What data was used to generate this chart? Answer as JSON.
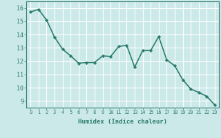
{
  "x": [
    0,
    1,
    2,
    3,
    4,
    5,
    6,
    7,
    8,
    9,
    10,
    11,
    12,
    13,
    14,
    15,
    16,
    17,
    18,
    19,
    20,
    21,
    22,
    23
  ],
  "y": [
    15.7,
    15.9,
    15.1,
    13.8,
    12.9,
    12.4,
    11.85,
    11.9,
    11.9,
    12.4,
    12.35,
    13.1,
    13.2,
    11.55,
    12.8,
    12.8,
    13.85,
    12.1,
    11.65,
    10.6,
    9.9,
    9.65,
    9.35,
    8.7
  ],
  "line_color": "#2d7d6e",
  "marker": "D",
  "marker_size": 2.2,
  "xlabel": "Humidex (Indice chaleur)",
  "ylim": [
    8.5,
    16.5
  ],
  "xlim": [
    -0.5,
    23.5
  ],
  "yticks": [
    9,
    10,
    11,
    12,
    13,
    14,
    15,
    16
  ],
  "xticks": [
    0,
    1,
    2,
    3,
    4,
    5,
    6,
    7,
    8,
    9,
    10,
    11,
    12,
    13,
    14,
    15,
    16,
    17,
    18,
    19,
    20,
    21,
    22,
    23
  ],
  "xtick_labels": [
    "0",
    "1",
    "2",
    "3",
    "4",
    "5",
    "6",
    "7",
    "8",
    "9",
    "10",
    "11",
    "12",
    "13",
    "14",
    "15",
    "16",
    "17",
    "18",
    "19",
    "20",
    "21",
    "22",
    "23"
  ],
  "background_color": "#cce9e9",
  "grid_color": "#ffffff",
  "tick_color": "#2d7d6e",
  "label_color": "#2d7d6e",
  "line_width": 1.2,
  "xlabel_fontsize": 6.5,
  "xtick_fontsize": 5.0,
  "ytick_fontsize": 6.0
}
